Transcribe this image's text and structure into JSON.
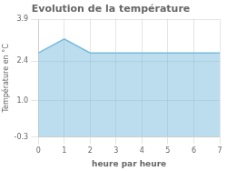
{
  "chart_data": {
    "type": "area",
    "title": "Evolution de la température",
    "xlabel": "heure par heure",
    "ylabel": "Température en °C",
    "x": [
      0,
      1,
      2,
      3,
      4,
      5,
      6,
      7
    ],
    "values": [
      2.7,
      3.2,
      2.7,
      2.7,
      2.7,
      2.7,
      2.7,
      2.7
    ],
    "color": "#77bbdd",
    "xlim": [
      0,
      7
    ],
    "xticks": [
      0,
      1,
      2,
      3,
      4,
      5,
      6,
      7
    ],
    "ylim": [
      -0.3,
      3.9
    ],
    "yticks": [
      -0.3,
      {
        "value": 1,
        "label": "1.0"
      },
      2.4,
      3.9
    ],
    "grid": true
  }
}
